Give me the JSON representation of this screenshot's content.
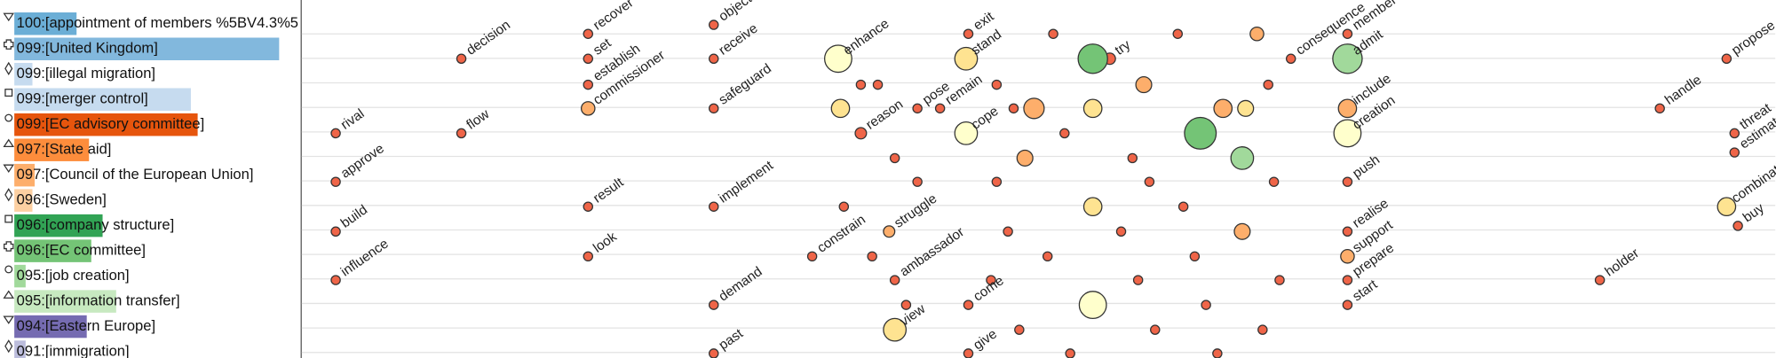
{
  "chart_data": [
    {
      "type": "barh",
      "categories": [
        "100:[appointment of members %5BV4.3%5",
        "099:[United Kingdom]",
        "099:[illegal migration]",
        "099:[merger control]",
        "099:[EC advisory committee]",
        "097:[State aid]",
        "097:[Council of the European Union]",
        "096:[Sweden]",
        "096:[company structure]",
        "096:[EC committee]",
        "095:[job creation]",
        "095:[information transfer]",
        "094:[Eastern Europe]",
        "091:[immigration]"
      ],
      "values": [
        55,
        234,
        16,
        156,
        162,
        66,
        18,
        16,
        78,
        68,
        10,
        90,
        64,
        10
      ],
      "colors": [
        "#6baed6",
        "#82b8dd",
        "#c6dbef",
        "#c6dbef",
        "#e6550d",
        "#fd8d3c",
        "#fdae6b",
        "#fdd0a2",
        "#31a354",
        "#74c476",
        "#a1d99b",
        "#c7e9c0",
        "#756bb1",
        "#bcbddc"
      ],
      "xlim": [
        0,
        253
      ]
    },
    {
      "type": "scatter",
      "xlim": [
        265,
        1568
      ],
      "ylim": [
        317,
        0
      ],
      "points": [
        {
          "x": 296,
          "y": 118,
          "r": 4,
          "color": "#ef6548",
          "label": "rival"
        },
        {
          "x": 296,
          "y": 161,
          "r": 4,
          "color": "#ef6548",
          "label": "approve"
        },
        {
          "x": 296,
          "y": 205,
          "r": 4,
          "color": "#ef6548",
          "label": "build"
        },
        {
          "x": 296,
          "y": 248,
          "r": 4,
          "color": "#ef6548",
          "label": "influence"
        },
        {
          "x": 407,
          "y": 52,
          "r": 4,
          "color": "#ef6548",
          "label": "decision"
        },
        {
          "x": 407,
          "y": 118,
          "r": 4,
          "color": "#ef6548",
          "label": "flow"
        },
        {
          "x": 519,
          "y": 30,
          "r": 4,
          "color": "#ef6548",
          "label": "recover"
        },
        {
          "x": 519,
          "y": 52,
          "r": 4,
          "color": "#ef6548",
          "label": "set"
        },
        {
          "x": 519,
          "y": 75,
          "r": 4,
          "color": "#ef6548",
          "label": "establish"
        },
        {
          "x": 519,
          "y": 96,
          "r": 6,
          "color": "#fdae6b",
          "label": "commissioner"
        },
        {
          "x": 519,
          "y": 183,
          "r": 4,
          "color": "#ef6548",
          "label": "result"
        },
        {
          "x": 519,
          "y": 227,
          "r": 4,
          "color": "#ef6548",
          "label": "look"
        },
        {
          "x": 630,
          "y": 22,
          "r": 4,
          "color": "#ef6548",
          "label": "object"
        },
        {
          "x": 630,
          "y": 52,
          "r": 4,
          "color": "#ef6548",
          "label": "receive"
        },
        {
          "x": 630,
          "y": 96,
          "r": 4,
          "color": "#ef6548",
          "label": "safeguard"
        },
        {
          "x": 630,
          "y": 183,
          "r": 4,
          "color": "#ef6548",
          "label": "implement"
        },
        {
          "x": 630,
          "y": 270,
          "r": 4,
          "color": "#ef6548",
          "label": "demand"
        },
        {
          "x": 630,
          "y": 313,
          "r": 4,
          "color": "#ef6548",
          "label": "past"
        },
        {
          "x": 740,
          "y": 52,
          "r": 12,
          "color": "#ffffcc",
          "label": "enhance"
        },
        {
          "x": 717,
          "y": 227,
          "r": 4,
          "color": "#ef6548",
          "label": "constrain"
        },
        {
          "x": 790,
          "y": 292,
          "r": 10,
          "color": "#fee391",
          "label": "view"
        },
        {
          "x": 785,
          "y": 205,
          "r": 5,
          "color": "#fdae6b",
          "label": "struggle"
        },
        {
          "x": 790,
          "y": 248,
          "r": 4,
          "color": "#ef6548",
          "label": "ambassador"
        },
        {
          "x": 760,
          "y": 118,
          "r": 5,
          "color": "#ef6548",
          "label": "reason"
        },
        {
          "x": 855,
          "y": 30,
          "r": 4,
          "color": "#ef6548",
          "label": "exit"
        },
        {
          "x": 853,
          "y": 52,
          "r": 10,
          "color": "#fee391",
          "label": "stand"
        },
        {
          "x": 853,
          "y": 118,
          "r": 10,
          "color": "#ffffcc",
          "label": "cope"
        },
        {
          "x": 855,
          "y": 270,
          "r": 4,
          "color": "#ef6548",
          "label": "come"
        },
        {
          "x": 855,
          "y": 313,
          "r": 4,
          "color": "#ef6548",
          "label": "give"
        },
        {
          "x": 830,
          "y": 96,
          "r": 4,
          "color": "#ef6548",
          "label": "remain"
        },
        {
          "x": 980,
          "y": 52,
          "r": 5,
          "color": "#ef6548",
          "label": "try"
        },
        {
          "x": 810,
          "y": 96,
          "r": 4,
          "color": "#ef6548",
          "label": "pose"
        },
        {
          "x": 1140,
          "y": 52,
          "r": 4,
          "color": "#ef6548",
          "label": "consequence"
        },
        {
          "x": 1190,
          "y": 30,
          "r": 4,
          "color": "#ef6548",
          "label": "member"
        },
        {
          "x": 1190,
          "y": 52,
          "r": 13,
          "color": "#a1d99b",
          "label": "admit"
        },
        {
          "x": 1190,
          "y": 96,
          "r": 8,
          "color": "#fdae6b",
          "label": "include"
        },
        {
          "x": 1190,
          "y": 118,
          "r": 12,
          "color": "#ffffcc",
          "label": "creation"
        },
        {
          "x": 1190,
          "y": 161,
          "r": 4,
          "color": "#ef6548",
          "label": "push"
        },
        {
          "x": 1190,
          "y": 205,
          "r": 4,
          "color": "#ef6548",
          "label": "realise"
        },
        {
          "x": 1190,
          "y": 227,
          "r": 6,
          "color": "#fdae6b",
          "label": "support"
        },
        {
          "x": 1190,
          "y": 248,
          "r": 4,
          "color": "#ef6548",
          "label": "prepare"
        },
        {
          "x": 1190,
          "y": 270,
          "r": 4,
          "color": "#ef6548",
          "label": "start"
        },
        {
          "x": 1466,
          "y": 96,
          "r": 4,
          "color": "#ef6548",
          "label": "handle"
        },
        {
          "x": 1413,
          "y": 248,
          "r": 4,
          "color": "#ef6548",
          "label": "holder"
        },
        {
          "x": 1525,
          "y": 52,
          "r": 4,
          "color": "#ef6548",
          "label": "propose"
        },
        {
          "x": 1532,
          "y": 118,
          "r": 4,
          "color": "#ef6548",
          "label": "threat"
        },
        {
          "x": 1532,
          "y": 135,
          "r": 4,
          "color": "#ef6548",
          "label": "estimate"
        },
        {
          "x": 1525,
          "y": 183,
          "r": 8,
          "color": "#fee391",
          "label": "combination"
        },
        {
          "x": 1535,
          "y": 200,
          "r": 4,
          "color": "#ef6548",
          "label": "buy"
        },
        {
          "x": 965,
          "y": 52,
          "r": 13,
          "color": "#74c476"
        },
        {
          "x": 965,
          "y": 96,
          "r": 8,
          "color": "#fee391"
        },
        {
          "x": 965,
          "y": 270,
          "r": 12,
          "color": "#ffffcc"
        },
        {
          "x": 1060,
          "y": 118,
          "r": 14,
          "color": "#74c476"
        },
        {
          "x": 1097,
          "y": 140,
          "r": 10,
          "color": "#a1d99b"
        },
        {
          "x": 905,
          "y": 140,
          "r": 7,
          "color": "#fdae6b"
        },
        {
          "x": 1080,
          "y": 96,
          "r": 8,
          "color": "#fdae6b"
        },
        {
          "x": 742,
          "y": 96,
          "r": 8,
          "color": "#fee391"
        },
        {
          "x": 913,
          "y": 96,
          "r": 9,
          "color": "#fdae6b"
        },
        {
          "x": 1010,
          "y": 75,
          "r": 7,
          "color": "#fdae6b"
        },
        {
          "x": 1097,
          "y": 205,
          "r": 7,
          "color": "#fdae6b"
        },
        {
          "x": 965,
          "y": 183,
          "r": 8,
          "color": "#fee391"
        },
        {
          "x": 1110,
          "y": 30,
          "r": 6,
          "color": "#fdae6b"
        },
        {
          "x": 1100,
          "y": 96,
          "r": 7,
          "color": "#fee391"
        },
        {
          "x": 760,
          "y": 75,
          "r": 4,
          "color": "#ef6548"
        },
        {
          "x": 775,
          "y": 75,
          "r": 4,
          "color": "#ef6548"
        },
        {
          "x": 790,
          "y": 140,
          "r": 4,
          "color": "#ef6548"
        },
        {
          "x": 810,
          "y": 161,
          "r": 4,
          "color": "#ef6548"
        },
        {
          "x": 745,
          "y": 183,
          "r": 4,
          "color": "#ef6548"
        },
        {
          "x": 770,
          "y": 227,
          "r": 4,
          "color": "#ef6548"
        },
        {
          "x": 800,
          "y": 270,
          "r": 4,
          "color": "#ef6548"
        },
        {
          "x": 880,
          "y": 75,
          "r": 4,
          "color": "#ef6548"
        },
        {
          "x": 895,
          "y": 96,
          "r": 4,
          "color": "#ef6548"
        },
        {
          "x": 880,
          "y": 161,
          "r": 4,
          "color": "#ef6548"
        },
        {
          "x": 890,
          "y": 205,
          "r": 4,
          "color": "#ef6548"
        },
        {
          "x": 875,
          "y": 248,
          "r": 4,
          "color": "#ef6548"
        },
        {
          "x": 900,
          "y": 292,
          "r": 4,
          "color": "#ef6548"
        },
        {
          "x": 930,
          "y": 30,
          "r": 4,
          "color": "#ef6548"
        },
        {
          "x": 940,
          "y": 118,
          "r": 4,
          "color": "#ef6548"
        },
        {
          "x": 925,
          "y": 227,
          "r": 4,
          "color": "#ef6548"
        },
        {
          "x": 945,
          "y": 313,
          "r": 4,
          "color": "#ef6548"
        },
        {
          "x": 1000,
          "y": 140,
          "r": 4,
          "color": "#ef6548"
        },
        {
          "x": 1015,
          "y": 161,
          "r": 4,
          "color": "#ef6548"
        },
        {
          "x": 990,
          "y": 205,
          "r": 4,
          "color": "#ef6548"
        },
        {
          "x": 1005,
          "y": 248,
          "r": 4,
          "color": "#ef6548"
        },
        {
          "x": 1020,
          "y": 292,
          "r": 4,
          "color": "#ef6548"
        },
        {
          "x": 1040,
          "y": 30,
          "r": 4,
          "color": "#ef6548"
        },
        {
          "x": 1045,
          "y": 183,
          "r": 4,
          "color": "#ef6548"
        },
        {
          "x": 1055,
          "y": 227,
          "r": 4,
          "color": "#ef6548"
        },
        {
          "x": 1065,
          "y": 270,
          "r": 4,
          "color": "#ef6548"
        },
        {
          "x": 1075,
          "y": 313,
          "r": 4,
          "color": "#ef6548"
        },
        {
          "x": 1120,
          "y": 75,
          "r": 4,
          "color": "#ef6548"
        },
        {
          "x": 1125,
          "y": 161,
          "r": 4,
          "color": "#ef6548"
        },
        {
          "x": 1130,
          "y": 248,
          "r": 4,
          "color": "#ef6548"
        },
        {
          "x": 1115,
          "y": 292,
          "r": 4,
          "color": "#ef6548"
        }
      ]
    }
  ]
}
